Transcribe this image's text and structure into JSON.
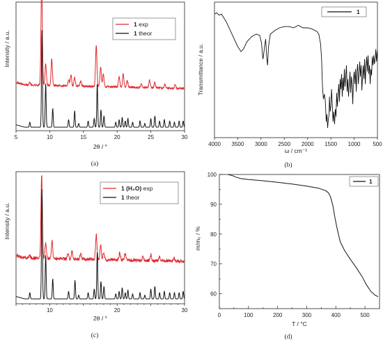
{
  "chart_data": [
    {
      "id": "a",
      "type": "line",
      "caption": "(a)",
      "xlabel": "2θ / °",
      "ylabel": "Intensity / a.u.",
      "xlim": [
        5,
        30
      ],
      "xticks": [
        5,
        10,
        15,
        20,
        25,
        30
      ],
      "xtick_labels": [
        "5",
        "10",
        "15",
        "20",
        "25",
        "30"
      ],
      "legend_position": "top-right",
      "series": [
        {
          "name": "1 exp",
          "name_bold": "1",
          "name_rest": " exp",
          "color": "#e0282d",
          "style": "exp",
          "offset": 0.27,
          "noise": 0.008,
          "baseline_start": 0.07,
          "baseline_end": 0.04,
          "peaks": [
            [
              7.05,
              0.02
            ],
            [
              8.8,
              0.83
            ],
            [
              9.4,
              0.17
            ],
            [
              10.3,
              0.21
            ],
            [
              12.8,
              0.05
            ],
            [
              13.15,
              0.09
            ],
            [
              13.7,
              0.07
            ],
            [
              14.6,
              0.04
            ],
            [
              16.9,
              0.33
            ],
            [
              17.55,
              0.16
            ],
            [
              17.95,
              0.1
            ],
            [
              20.3,
              0.08
            ],
            [
              20.9,
              0.1
            ],
            [
              21.5,
              0.05
            ],
            [
              23.6,
              0.03
            ],
            [
              24.8,
              0.06
            ],
            [
              25.6,
              0.04
            ],
            [
              27.1,
              0.03
            ],
            [
              28.6,
              0.03
            ]
          ]
        },
        {
          "name": "1 theor",
          "name_bold": "1",
          "name_rest": " theor",
          "color": "#111111",
          "style": "theor",
          "offset": 0.0,
          "noise": 0,
          "baseline_start": 0,
          "baseline_end": 0,
          "peaks": [
            [
              7.05,
              0.04
            ],
            [
              8.85,
              0.78
            ],
            [
              9.4,
              0.35
            ],
            [
              10.45,
              0.15
            ],
            [
              12.8,
              0.06
            ],
            [
              13.7,
              0.13
            ],
            [
              14.3,
              0.03
            ],
            [
              15.7,
              0.05
            ],
            [
              16.6,
              0.07
            ],
            [
              17.05,
              0.35
            ],
            [
              17.6,
              0.14
            ],
            [
              18.05,
              0.09
            ],
            [
              19.8,
              0.04
            ],
            [
              20.3,
              0.06
            ],
            [
              20.75,
              0.08
            ],
            [
              21.2,
              0.05
            ],
            [
              21.6,
              0.07
            ],
            [
              22.3,
              0.04
            ],
            [
              23.4,
              0.05
            ],
            [
              24.1,
              0.03
            ],
            [
              25.0,
              0.07
            ],
            [
              25.6,
              0.09
            ],
            [
              26.3,
              0.05
            ],
            [
              27.0,
              0.06
            ],
            [
              27.8,
              0.05
            ],
            [
              28.5,
              0.04
            ],
            [
              29.2,
              0.05
            ],
            [
              29.8,
              0.05
            ]
          ]
        }
      ]
    },
    {
      "id": "b",
      "type": "line",
      "caption": "(b)",
      "xlabel": "ω / cm⁻¹",
      "ylabel": "Transmittance / a.u.",
      "xlim": [
        4000,
        500
      ],
      "xticks": [
        4000,
        3500,
        3000,
        2500,
        2000,
        1500,
        1000,
        500
      ],
      "xtick_labels": [
        "4000",
        "3500",
        "3000",
        "2500",
        "2000",
        "1500",
        "1000",
        "500"
      ],
      "legend_position": "top-right",
      "series": [
        {
          "name": "1",
          "color": "#111111",
          "points": [
            [
              4000,
              0.96
            ],
            [
              3950,
              0.97
            ],
            [
              3900,
              0.95
            ],
            [
              3850,
              0.96
            ],
            [
              3800,
              0.93
            ],
            [
              3750,
              0.9
            ],
            [
              3700,
              0.86
            ],
            [
              3600,
              0.78
            ],
            [
              3500,
              0.7
            ],
            [
              3430,
              0.66
            ],
            [
              3380,
              0.68
            ],
            [
              3300,
              0.74
            ],
            [
              3200,
              0.78
            ],
            [
              3100,
              0.8
            ],
            [
              3030,
              0.79
            ],
            [
              2990,
              0.73
            ],
            [
              2960,
              0.6
            ],
            [
              2945,
              0.63
            ],
            [
              2925,
              0.7
            ],
            [
              2900,
              0.76
            ],
            [
              2880,
              0.62
            ],
            [
              2860,
              0.55
            ],
            [
              2840,
              0.7
            ],
            [
              2800,
              0.8
            ],
            [
              2700,
              0.83
            ],
            [
              2600,
              0.85
            ],
            [
              2500,
              0.86
            ],
            [
              2400,
              0.86
            ],
            [
              2300,
              0.85
            ],
            [
              2200,
              0.87
            ],
            [
              2100,
              0.85
            ],
            [
              2000,
              0.85
            ],
            [
              1900,
              0.84
            ],
            [
              1800,
              0.82
            ],
            [
              1760,
              0.8
            ],
            [
              1720,
              0.72
            ],
            [
              1700,
              0.6
            ],
            [
              1680,
              0.38
            ],
            [
              1660,
              0.28
            ],
            [
              1640,
              0.32
            ],
            [
              1620,
              0.27
            ],
            [
              1600,
              0.1
            ],
            [
              1585,
              0.16
            ],
            [
              1570,
              0.05
            ],
            [
              1555,
              0.12
            ],
            [
              1540,
              0.15
            ],
            [
              1530,
              0.3
            ],
            [
              1515,
              0.18
            ],
            [
              1500,
              0.22
            ],
            [
              1485,
              0.36
            ],
            [
              1470,
              0.25
            ],
            [
              1455,
              0.1
            ],
            [
              1440,
              0.18
            ],
            [
              1420,
              0.08
            ],
            [
              1405,
              0.2
            ],
            [
              1390,
              0.14
            ],
            [
              1375,
              0.33
            ],
            [
              1360,
              0.22
            ],
            [
              1345,
              0.32
            ],
            [
              1330,
              0.4
            ],
            [
              1315,
              0.26
            ],
            [
              1300,
              0.44
            ],
            [
              1285,
              0.36
            ],
            [
              1270,
              0.48
            ],
            [
              1255,
              0.3
            ],
            [
              1240,
              0.45
            ],
            [
              1225,
              0.35
            ],
            [
              1210,
              0.52
            ],
            [
              1195,
              0.38
            ],
            [
              1180,
              0.46
            ],
            [
              1165,
              0.55
            ],
            [
              1150,
              0.34
            ],
            [
              1135,
              0.44
            ],
            [
              1120,
              0.3
            ],
            [
              1105,
              0.4
            ],
            [
              1090,
              0.5
            ],
            [
              1075,
              0.33
            ],
            [
              1060,
              0.46
            ],
            [
              1045,
              0.4
            ],
            [
              1030,
              0.24
            ],
            [
              1015,
              0.44
            ],
            [
              1000,
              0.5
            ],
            [
              985,
              0.4
            ],
            [
              970,
              0.52
            ],
            [
              955,
              0.34
            ],
            [
              940,
              0.5
            ],
            [
              925,
              0.56
            ],
            [
              910,
              0.4
            ],
            [
              895,
              0.48
            ],
            [
              880,
              0.58
            ],
            [
              865,
              0.46
            ],
            [
              850,
              0.55
            ],
            [
              835,
              0.35
            ],
            [
              820,
              0.46
            ],
            [
              805,
              0.55
            ],
            [
              790,
              0.44
            ],
            [
              775,
              0.6
            ],
            [
              760,
              0.4
            ],
            [
              745,
              0.55
            ],
            [
              730,
              0.62
            ],
            [
              715,
              0.5
            ],
            [
              700,
              0.63
            ],
            [
              685,
              0.48
            ],
            [
              670,
              0.55
            ],
            [
              655,
              0.4
            ],
            [
              640,
              0.52
            ],
            [
              625,
              0.47
            ],
            [
              610,
              0.62
            ],
            [
              595,
              0.55
            ],
            [
              580,
              0.63
            ],
            [
              565,
              0.56
            ],
            [
              550,
              0.6
            ],
            [
              535,
              0.68
            ],
            [
              520,
              0.58
            ],
            [
              505,
              0.66
            ],
            [
              500,
              0.62
            ]
          ]
        }
      ]
    },
    {
      "id": "c",
      "type": "line",
      "caption": "(c)",
      "xlabel": "2θ / °",
      "ylabel": "Intensity / a.u.",
      "xlim": [
        5,
        30
      ],
      "xticks": [
        10,
        20,
        30
      ],
      "xtick_labels": [
        "10",
        "20",
        "30"
      ],
      "legend_position": "top-right",
      "series": [
        {
          "name": "1 (H2O) exp",
          "name_bold": "1 (H₂O)",
          "name_rest": " exp",
          "color": "#e0282d",
          "style": "exp",
          "offset": 0.25,
          "noise": 0.013,
          "baseline_start": 0.08,
          "baseline_end": 0.05,
          "peaks": [
            [
              7.05,
              0.02
            ],
            [
              8.8,
              0.67
            ],
            [
              9.4,
              0.12
            ],
            [
              10.35,
              0.14
            ],
            [
              12.7,
              0.04
            ],
            [
              13.3,
              0.06
            ],
            [
              14.6,
              0.04
            ],
            [
              16.9,
              0.2
            ],
            [
              17.55,
              0.12
            ],
            [
              18.0,
              0.06
            ],
            [
              20.4,
              0.06
            ],
            [
              21.2,
              0.05
            ],
            [
              23.8,
              0.03
            ],
            [
              25.0,
              0.05
            ],
            [
              26.3,
              0.03
            ],
            [
              28.4,
              0.03
            ]
          ]
        },
        {
          "name": "1 theor",
          "name_bold": "1",
          "name_rest": " theor",
          "color": "#111111",
          "style": "theor",
          "offset": 0.0,
          "noise": 0,
          "baseline_start": 0,
          "baseline_end": 0,
          "peaks": [
            [
              7.05,
              0.05
            ],
            [
              8.85,
              0.88
            ],
            [
              9.4,
              0.35
            ],
            [
              10.45,
              0.16
            ],
            [
              12.8,
              0.06
            ],
            [
              13.75,
              0.15
            ],
            [
              14.3,
              0.03
            ],
            [
              15.7,
              0.05
            ],
            [
              16.6,
              0.08
            ],
            [
              17.05,
              0.38
            ],
            [
              17.6,
              0.14
            ],
            [
              18.05,
              0.1
            ],
            [
              19.8,
              0.04
            ],
            [
              20.3,
              0.06
            ],
            [
              20.75,
              0.09
            ],
            [
              21.2,
              0.05
            ],
            [
              21.6,
              0.07
            ],
            [
              22.3,
              0.04
            ],
            [
              23.4,
              0.05
            ],
            [
              24.1,
              0.03
            ],
            [
              25.0,
              0.08
            ],
            [
              25.6,
              0.1
            ],
            [
              26.3,
              0.05
            ],
            [
              27.0,
              0.06
            ],
            [
              27.8,
              0.05
            ],
            [
              28.5,
              0.05
            ],
            [
              29.2,
              0.05
            ],
            [
              29.8,
              0.06
            ]
          ]
        }
      ]
    },
    {
      "id": "d",
      "type": "line",
      "caption": "(d)",
      "xlabel": "T / °C",
      "ylabel": "m/m₀ / %",
      "xlim": [
        0,
        550
      ],
      "ylim": [
        55,
        100
      ],
      "xticks": [
        0,
        100,
        200,
        300,
        400,
        500
      ],
      "xtick_labels": [
        "0",
        "100",
        "200",
        "300",
        "400",
        "500"
      ],
      "yticks": [
        60,
        70,
        80,
        90,
        100
      ],
      "ytick_labels": [
        "60",
        "70",
        "80",
        "90",
        "100"
      ],
      "legend_position": "top-right",
      "series": [
        {
          "name": "1",
          "color": "#111111",
          "points": [
            [
              30,
              100.0
            ],
            [
              45,
              99.6
            ],
            [
              60,
              99.0
            ],
            [
              75,
              98.6
            ],
            [
              100,
              98.3
            ],
            [
              150,
              97.9
            ],
            [
              200,
              97.4
            ],
            [
              250,
              96.8
            ],
            [
              300,
              96.1
            ],
            [
              340,
              95.4
            ],
            [
              365,
              94.6
            ],
            [
              375,
              93.8
            ],
            [
              382,
              92.5
            ],
            [
              390,
              89.5
            ],
            [
              397,
              85.5
            ],
            [
              405,
              81.5
            ],
            [
              415,
              77.5
            ],
            [
              430,
              74.5
            ],
            [
              450,
              71.5
            ],
            [
              470,
              68.8
            ],
            [
              490,
              65.8
            ],
            [
              505,
              63.0
            ],
            [
              520,
              60.8
            ],
            [
              535,
              59.5
            ],
            [
              545,
              59.0
            ]
          ]
        }
      ]
    }
  ]
}
